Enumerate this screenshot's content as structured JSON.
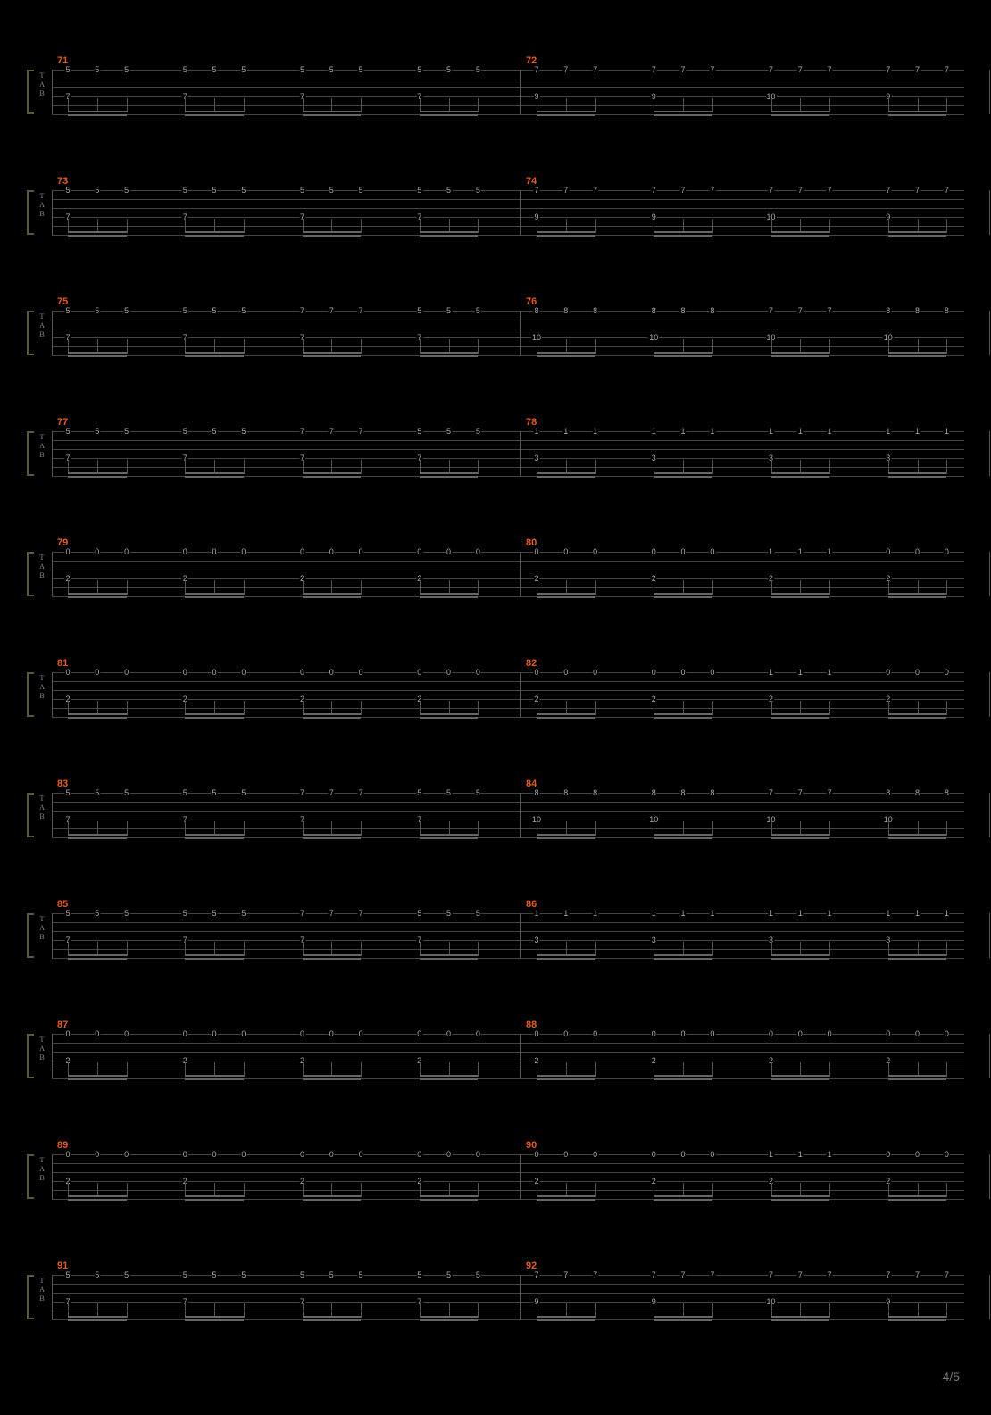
{
  "page_number": "4/5",
  "background_color": "#000000",
  "staff_line_color": "#444444",
  "measure_num_color": "#e85a1a",
  "fret_color": "#aaaaaa",
  "tab_letters": [
    "T",
    "A",
    "B"
  ],
  "string_spacing": 10,
  "string_count": 6,
  "num_systems": 11,
  "measures_per_system": 2,
  "groups_per_measure": 4,
  "notes_per_group": 3,
  "systems": [
    {
      "measures": [
        {
          "num": 71,
          "top_fret": "5",
          "top_alt": null,
          "bottom_fret": "7",
          "bottom_alt": null,
          "g3_top": "5"
        },
        {
          "num": 72,
          "top_fret": "7",
          "top_alt": null,
          "bottom_fret": "9",
          "bottom_alt": "10",
          "g3_top": "7"
        }
      ]
    },
    {
      "measures": [
        {
          "num": 73,
          "top_fret": "5",
          "top_alt": null,
          "bottom_fret": "7",
          "bottom_alt": null,
          "g3_top": "5"
        },
        {
          "num": 74,
          "top_fret": "7",
          "top_alt": null,
          "bottom_fret": "9",
          "bottom_alt": "10",
          "g3_top": "7"
        }
      ]
    },
    {
      "measures": [
        {
          "num": 75,
          "top_fret": "5",
          "top_alt": null,
          "bottom_fret": "7",
          "bottom_alt": null,
          "g3_top": "7"
        },
        {
          "num": 76,
          "top_fret": "8",
          "top_alt": null,
          "bottom_fret": "10",
          "bottom_alt": null,
          "g3_top": "7"
        }
      ]
    },
    {
      "measures": [
        {
          "num": 77,
          "top_fret": "5",
          "top_alt": null,
          "bottom_fret": "7",
          "bottom_alt": null,
          "g3_top": "7"
        },
        {
          "num": 78,
          "top_fret": "1",
          "top_alt": null,
          "bottom_fret": "3",
          "bottom_alt": null,
          "g3_top": "1"
        }
      ]
    },
    {
      "measures": [
        {
          "num": 79,
          "top_fret": "0",
          "top_alt": null,
          "bottom_fret": "2",
          "bottom_alt": null,
          "g3_top": "0"
        },
        {
          "num": 80,
          "top_fret": "0",
          "top_alt": null,
          "bottom_fret": "2",
          "bottom_alt": null,
          "g3_top": "1"
        }
      ]
    },
    {
      "measures": [
        {
          "num": 81,
          "top_fret": "0",
          "top_alt": null,
          "bottom_fret": "2",
          "bottom_alt": null,
          "g3_top": "0"
        },
        {
          "num": 82,
          "top_fret": "0",
          "top_alt": null,
          "bottom_fret": "2",
          "bottom_alt": null,
          "g3_top": "1"
        }
      ]
    },
    {
      "measures": [
        {
          "num": 83,
          "top_fret": "5",
          "top_alt": null,
          "bottom_fret": "7",
          "bottom_alt": null,
          "g3_top": "7"
        },
        {
          "num": 84,
          "top_fret": "8",
          "top_alt": null,
          "bottom_fret": "10",
          "bottom_alt": null,
          "g3_top": "7"
        }
      ]
    },
    {
      "measures": [
        {
          "num": 85,
          "top_fret": "5",
          "top_alt": null,
          "bottom_fret": "7",
          "bottom_alt": null,
          "g3_top": "7"
        },
        {
          "num": 86,
          "top_fret": "1",
          "top_alt": null,
          "bottom_fret": "3",
          "bottom_alt": null,
          "g3_top": "1"
        }
      ]
    },
    {
      "measures": [
        {
          "num": 87,
          "top_fret": "0",
          "top_alt": null,
          "bottom_fret": "2",
          "bottom_alt": null,
          "g3_top": "0"
        },
        {
          "num": 88,
          "top_fret": "0",
          "top_alt": null,
          "bottom_fret": "2",
          "bottom_alt": null,
          "g3_top": "0"
        }
      ]
    },
    {
      "measures": [
        {
          "num": 89,
          "top_fret": "0",
          "top_alt": null,
          "bottom_fret": "2",
          "bottom_alt": null,
          "g3_top": "0"
        },
        {
          "num": 90,
          "top_fret": "0",
          "top_alt": null,
          "bottom_fret": "2",
          "bottom_alt": null,
          "g3_top": "1"
        }
      ]
    },
    {
      "measures": [
        {
          "num": 91,
          "top_fret": "5",
          "top_alt": null,
          "bottom_fret": "7",
          "bottom_alt": null,
          "g3_top": "5"
        },
        {
          "num": 92,
          "top_fret": "7",
          "top_alt": null,
          "bottom_fret": "9",
          "bottom_alt": "10",
          "g3_top": "7"
        }
      ]
    }
  ]
}
